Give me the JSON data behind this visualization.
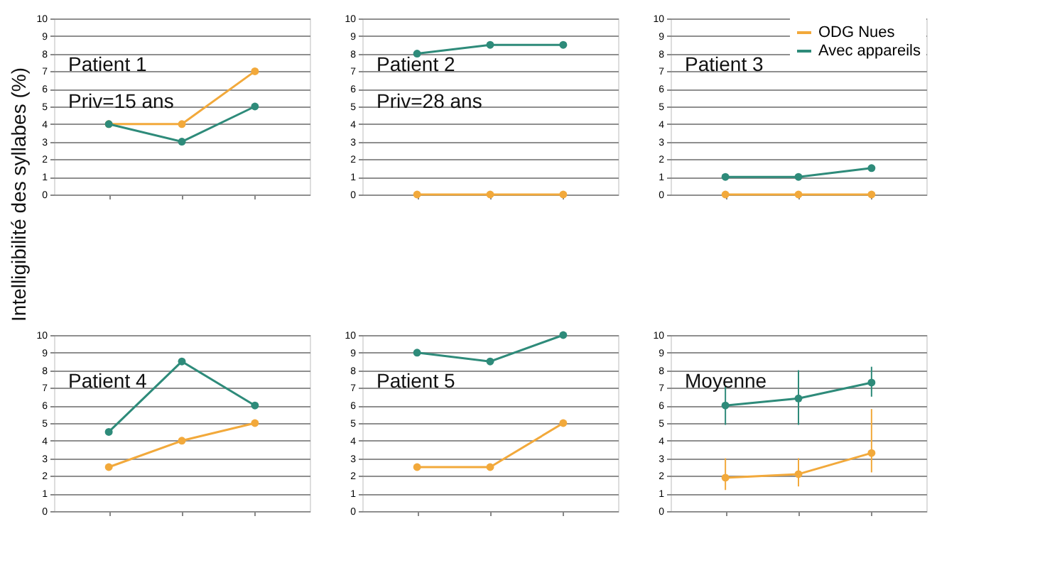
{
  "chart_data": [
    {
      "type": "line",
      "ylabel": "Intelligibilité des syllabes (%)",
      "annotations": [
        "Patient 1",
        "Priv=15 ans"
      ],
      "categories": [
        null,
        null,
        null
      ],
      "ylim": [
        0,
        10
      ],
      "yticks": [
        0,
        1,
        2,
        3,
        4,
        5,
        6,
        7,
        8,
        9,
        10
      ],
      "tick_labels": "y",
      "grid": "y",
      "marker": "circle",
      "series": [
        {
          "color": "#f2a93b",
          "values": [
            4,
            4,
            7
          ]
        },
        {
          "color": "#2e8b7a",
          "values": [
            4,
            3,
            5
          ]
        }
      ]
    },
    {
      "type": "line",
      "annotations": [
        "Patient 2",
        "Priv=28 ans"
      ],
      "categories": [
        null,
        null,
        null
      ],
      "ylim": [
        0,
        10
      ],
      "yticks": [
        0,
        1,
        2,
        3,
        4,
        5,
        6,
        7,
        8,
        9,
        10
      ],
      "tick_labels": "y",
      "grid": "y",
      "marker": "circle",
      "series": [
        {
          "color": "#f2a93b",
          "values": [
            0,
            0,
            0
          ]
        },
        {
          "color": "#2e8b7a",
          "values": [
            8,
            8.5,
            8.5
          ]
        }
      ]
    },
    {
      "type": "line",
      "annotations": [
        "Patient 3"
      ],
      "legend": "top right",
      "categories": [
        null,
        null,
        null
      ],
      "ylim": [
        0,
        10
      ],
      "yticks": [
        0,
        1,
        2,
        3,
        4,
        5,
        6,
        7,
        8,
        9,
        10
      ],
      "tick_labels": "y",
      "grid": "y",
      "marker": "circle",
      "series": [
        {
          "name": "ODG Nues",
          "color": "#f2a93b",
          "values": [
            0,
            0,
            0
          ]
        },
        {
          "name": "Avec appareils",
          "color": "#2e8b7a",
          "values": [
            1,
            1,
            1.5
          ]
        }
      ]
    },
    {
      "type": "line",
      "annotations": [
        "Patient 4"
      ],
      "categories": [
        null,
        null,
        null
      ],
      "ylim": [
        0,
        10
      ],
      "yticks": [
        0,
        1,
        2,
        3,
        4,
        5,
        6,
        7,
        8,
        9,
        10
      ],
      "tick_labels": "y",
      "grid": "y",
      "marker": "circle",
      "series": [
        {
          "color": "#f2a93b",
          "values": [
            2.5,
            4,
            5
          ]
        },
        {
          "color": "#2e8b7a",
          "values": [
            4.5,
            8.5,
            6
          ]
        }
      ]
    },
    {
      "type": "line",
      "annotations": [
        "Patient 5"
      ],
      "categories": [
        null,
        null,
        null
      ],
      "ylim": [
        0,
        10
      ],
      "yticks": [
        0,
        1,
        2,
        3,
        4,
        5,
        6,
        7,
        8,
        9,
        10
      ],
      "tick_labels": "y",
      "grid": "y",
      "marker": "circle",
      "series": [
        {
          "color": "#f2a93b",
          "values": [
            2.5,
            2.5,
            5
          ]
        },
        {
          "color": "#2e8b7a",
          "values": [
            9,
            8.5,
            10
          ]
        }
      ]
    },
    {
      "type": "line",
      "annotations": [
        "Moyenne"
      ],
      "categories": [
        null,
        null,
        null
      ],
      "ylim": [
        0,
        10
      ],
      "yticks": [
        0,
        1,
        2,
        3,
        4,
        5,
        6,
        7,
        8,
        9,
        10
      ],
      "tick_labels": "y",
      "grid": "y",
      "marker": "circle",
      "series": [
        {
          "color": "#f2a93b",
          "values": [
            1.9,
            2.1,
            3.3
          ],
          "errors": [
            [
              1.2,
              3
            ],
            [
              1.4,
              3
            ],
            [
              2.2,
              5.8
            ]
          ]
        },
        {
          "color": "#2e8b7a",
          "values": [
            6,
            6.4,
            7.3
          ],
          "errors": [
            [
              4.9,
              7.1
            ],
            [
              4.9,
              8
            ],
            [
              6.5,
              8.2
            ]
          ]
        }
      ]
    }
  ]
}
